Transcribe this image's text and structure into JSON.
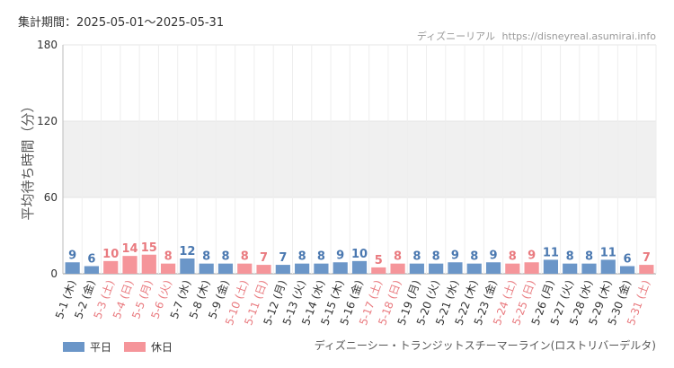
{
  "header": {
    "period": "集計期間：2025-05-01～2025-05-31",
    "site_name": "ディズニーリアル",
    "site_url": "https://disneyreal.asumirai.info"
  },
  "footer": {
    "attraction": "ディズニーシー・トランジットスチーマーライン(ロストリバーデルタ)"
  },
  "colors": {
    "weekday": "#6b96c8",
    "holiday": "#f5959a",
    "weekday_label": "#4a78b0",
    "holiday_label": "#e97a7f",
    "band": "#f0f0f0",
    "grid": "#e4e4e4"
  },
  "chart_data": {
    "type": "bar",
    "ylabel": "平均待ち時間（分）",
    "ylim": [
      0,
      180
    ],
    "yticks": [
      0,
      60,
      120,
      180
    ],
    "legend": [
      {
        "label": "平日",
        "kind": "weekday"
      },
      {
        "label": "休日",
        "kind": "holiday"
      }
    ],
    "categories": [
      "5-1 (木)",
      "5-2 (金)",
      "5-3 (土)",
      "5-4 (日)",
      "5-5 (月)",
      "5-6 (火)",
      "5-7 (水)",
      "5-8 (木)",
      "5-9 (金)",
      "5-10 (土)",
      "5-11 (日)",
      "5-12 (月)",
      "5-13 (火)",
      "5-14 (水)",
      "5-15 (木)",
      "5-16 (金)",
      "5-17 (土)",
      "5-18 (日)",
      "5-19 (月)",
      "5-20 (火)",
      "5-21 (水)",
      "5-22 (木)",
      "5-23 (金)",
      "5-24 (土)",
      "5-25 (日)",
      "5-26 (月)",
      "5-27 (火)",
      "5-28 (水)",
      "5-29 (木)",
      "5-30 (金)",
      "5-31 (土)"
    ],
    "values": [
      9,
      6,
      10,
      14,
      15,
      8,
      12,
      8,
      8,
      8,
      7,
      7,
      8,
      8,
      9,
      10,
      5,
      8,
      8,
      8,
      9,
      8,
      9,
      8,
      9,
      11,
      8,
      8,
      11,
      6,
      7
    ],
    "holiday": [
      false,
      false,
      true,
      true,
      true,
      true,
      false,
      false,
      false,
      true,
      true,
      false,
      false,
      false,
      false,
      false,
      true,
      true,
      false,
      false,
      false,
      false,
      false,
      true,
      true,
      false,
      false,
      false,
      false,
      false,
      true
    ]
  }
}
